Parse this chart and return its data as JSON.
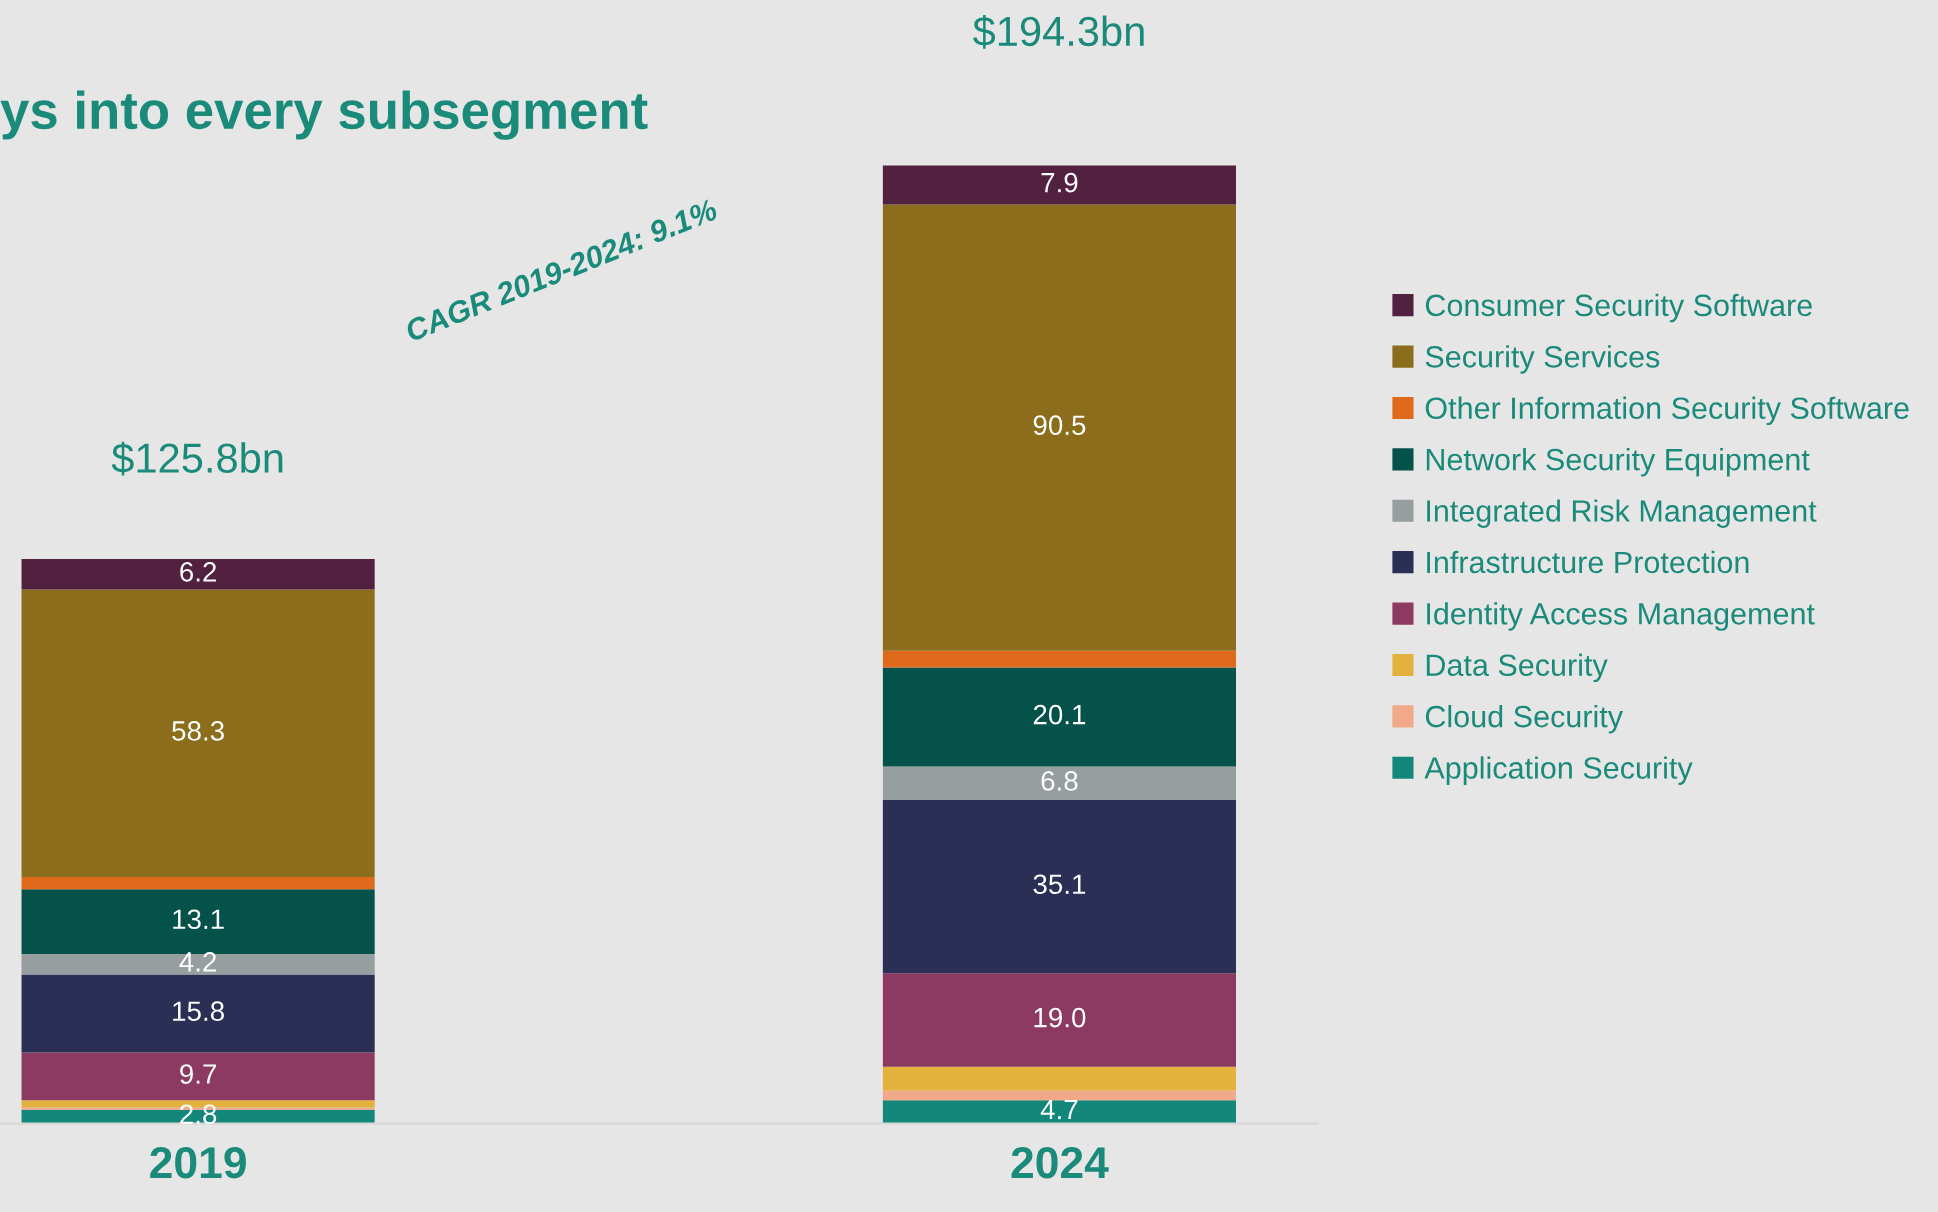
{
  "chart_data": {
    "type": "bar",
    "stacked": true,
    "title": "ys into every subsegment",
    "categories": [
      "2019",
      "2024"
    ],
    "series": [
      {
        "name": "Application Security",
        "color": "#12877a",
        "values": [
          2.8,
          4.7
        ],
        "value_labels": [
          "2.8",
          "4.7"
        ]
      },
      {
        "name": "Cloud Security",
        "color": "#f2a98a",
        "values": [
          0.5,
          2.0
        ],
        "value_labels": [
          null,
          null
        ]
      },
      {
        "name": "Data Security",
        "color": "#e3b23c",
        "values": [
          1.4,
          4.8
        ],
        "value_labels": [
          null,
          null
        ]
      },
      {
        "name": "Identity Access Management",
        "color": "#8c3a62",
        "values": [
          9.7,
          19.0
        ],
        "value_labels": [
          "9.7",
          "19.0"
        ]
      },
      {
        "name": "Infrastructure Protection",
        "color": "#2c2f55",
        "values": [
          15.8,
          35.1
        ],
        "value_labels": [
          "15.8",
          "35.1"
        ]
      },
      {
        "name": "Integrated Risk Management",
        "color": "#979ea0",
        "values": [
          4.2,
          6.8
        ],
        "value_labels": [
          "4.2",
          "6.8"
        ]
      },
      {
        "name": "Network Security Equipment",
        "color": "#04524a",
        "values": [
          13.1,
          20.1
        ],
        "value_labels": [
          "13.1",
          "20.1"
        ]
      },
      {
        "name": "Other Information Security Software",
        "color": "#e06a1b",
        "values": [
          2.5,
          3.4
        ],
        "value_labels": [
          null,
          null
        ]
      },
      {
        "name": "Security Services",
        "color": "#8b6d1c",
        "values": [
          58.3,
          90.5
        ],
        "value_labels": [
          "58.3",
          "90.5"
        ]
      },
      {
        "name": "Consumer Security Software",
        "color": "#52213f",
        "values": [
          6.2,
          7.9
        ],
        "value_labels": [
          "6.2",
          "7.9"
        ]
      }
    ],
    "annotations": [
      "CAGR 2019-2024: 9.1%",
      "$125.8bn",
      "$194.3bn"
    ],
    "legend": "right",
    "grid": false
  }
}
